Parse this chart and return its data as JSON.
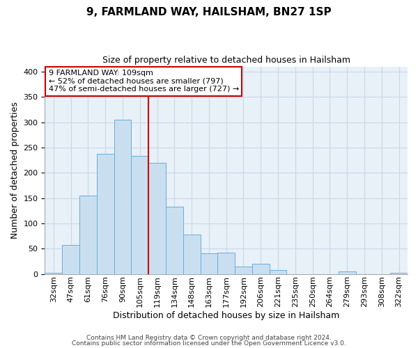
{
  "title": "9, FARMLAND WAY, HAILSHAM, BN27 1SP",
  "subtitle": "Size of property relative to detached houses in Hailsham",
  "xlabel": "Distribution of detached houses by size in Hailsham",
  "ylabel": "Number of detached properties",
  "categories": [
    "32sqm",
    "47sqm",
    "61sqm",
    "76sqm",
    "90sqm",
    "105sqm",
    "119sqm",
    "134sqm",
    "148sqm",
    "163sqm",
    "177sqm",
    "192sqm",
    "206sqm",
    "221sqm",
    "235sqm",
    "250sqm",
    "264sqm",
    "279sqm",
    "293sqm",
    "308sqm",
    "322sqm"
  ],
  "values": [
    2,
    57,
    155,
    238,
    305,
    233,
    220,
    133,
    78,
    41,
    42,
    14,
    20,
    7,
    0,
    0,
    0,
    5,
    0,
    0,
    2
  ],
  "bar_color": "#c9dff0",
  "bar_edge_color": "#6aadd5",
  "vline_x_index": 5,
  "vline_color": "#cc0000",
  "annotation_title": "9 FARMLAND WAY: 109sqm",
  "annotation_line1": "← 52% of detached houses are smaller (797)",
  "annotation_line2": "47% of semi-detached houses are larger (727) →",
  "annotation_box_color": "#ffffff",
  "annotation_box_edge": "#cc0000",
  "ylim": [
    0,
    410
  ],
  "yticks": [
    0,
    50,
    100,
    150,
    200,
    250,
    300,
    350,
    400
  ],
  "footer1": "Contains HM Land Registry data © Crown copyright and database right 2024.",
  "footer2": "Contains public sector information licensed under the Open Government Licence v3.0.",
  "bg_color": "#ffffff",
  "grid_color": "#c8d8e8",
  "title_fontsize": 11,
  "subtitle_fontsize": 9,
  "axis_label_fontsize": 9,
  "tick_fontsize": 8,
  "annotation_fontsize": 8,
  "footer_fontsize": 6.5
}
